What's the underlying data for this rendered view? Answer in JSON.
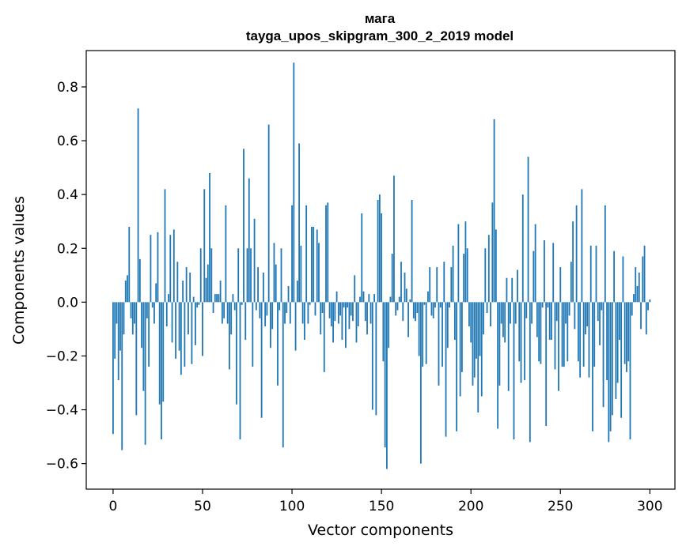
{
  "chart_data": {
    "type": "bar",
    "title": "мага",
    "subtitle": "tayga_upos_skipgram_300_2_2019 model",
    "xlabel": "Vector components",
    "ylabel": "Components values",
    "xlim": [
      -15,
      314
    ],
    "ylim": [
      -0.695,
      0.935
    ],
    "x_ticks": [
      0,
      50,
      100,
      150,
      200,
      250,
      300
    ],
    "y_ticks": [
      -0.6,
      -0.4,
      -0.2,
      0.0,
      0.2,
      0.4,
      0.6,
      0.8
    ],
    "x_tick_labels": [
      "0",
      "50",
      "100",
      "150",
      "200",
      "250",
      "300"
    ],
    "y_tick_labels": [
      "−0.6",
      "−0.4",
      "−0.2",
      "0.0",
      "0.2",
      "0.4",
      "0.6",
      "0.8"
    ],
    "bar_color": "#1f77b4",
    "grid": false,
    "legend": "none",
    "series": [
      {
        "values": [
          -0.49,
          -0.21,
          -0.08,
          -0.29,
          -0.18,
          -0.55,
          -0.12,
          0.08,
          0.1,
          0.28,
          -0.06,
          -0.12,
          -0.08,
          -0.42,
          0.72,
          0.16,
          -0.17,
          -0.33,
          -0.53,
          -0.06,
          -0.24,
          0.25,
          -0.02,
          -0.08,
          0.07,
          0.26,
          -0.38,
          -0.51,
          -0.37,
          0.42,
          -0.09,
          0.03,
          0.25,
          -0.15,
          0.27,
          -0.21,
          0.15,
          -0.18,
          -0.27,
          0.08,
          -0.24,
          0.13,
          -0.12,
          0.11,
          -0.23,
          0.02,
          -0.16,
          -0.02,
          -0.01,
          0.2,
          -0.2,
          0.42,
          0.09,
          0.14,
          0.48,
          0.2,
          -0.04,
          0.03,
          0.03,
          0.03,
          0.08,
          -0.08,
          -0.06,
          0.36,
          -0.08,
          -0.25,
          -0.12,
          0.03,
          -0.03,
          -0.38,
          0.2,
          -0.51,
          -0.01,
          0.57,
          -0.14,
          0.2,
          0.46,
          0.2,
          -0.24,
          0.31,
          -0.03,
          0.13,
          -0.06,
          -0.43,
          0.11,
          -0.09,
          -0.05,
          0.66,
          -0.17,
          -0.1,
          0.22,
          0.14,
          -0.31,
          -0.03,
          0.2,
          -0.54,
          -0.08,
          -0.04,
          0.06,
          -0.08,
          0.36,
          0.89,
          -0.18,
          0.08,
          0.59,
          0.21,
          -0.08,
          -0.14,
          0.36,
          -0.08,
          -0.01,
          0.28,
          0.28,
          -0.05,
          0.27,
          0.22,
          -0.12,
          -0.04,
          -0.26,
          0.36,
          0.37,
          -0.06,
          -0.09,
          -0.15,
          -0.07,
          0.04,
          -0.08,
          -0.05,
          -0.14,
          -0.02,
          -0.17,
          -0.02,
          -0.1,
          -0.05,
          -0.07,
          0.1,
          -0.15,
          -0.09,
          0.02,
          0.33,
          0.04,
          -0.07,
          -0.12,
          0.03,
          -0.08,
          -0.4,
          0.03,
          -0.42,
          0.38,
          0.4,
          0.33,
          -0.22,
          -0.54,
          -0.62,
          -0.17,
          0.02,
          0.18,
          0.47,
          -0.05,
          -0.03,
          0.02,
          0.15,
          -0.07,
          0.11,
          0.05,
          -0.13,
          0.01,
          0.38,
          -0.06,
          -0.07,
          -0.04,
          -0.2,
          -0.6,
          -0.24,
          -0.01,
          -0.23,
          0.04,
          0.13,
          -0.05,
          -0.06,
          -0.02,
          0.13,
          -0.31,
          -0.02,
          -0.24,
          0.15,
          -0.5,
          -0.17,
          -0.02,
          0.13,
          0.21,
          -0.14,
          -0.48,
          0.29,
          -0.35,
          -0.26,
          0.18,
          0.3,
          0.2,
          -0.09,
          -0.15,
          -0.31,
          -0.28,
          -0.21,
          -0.41,
          -0.2,
          -0.35,
          -0.12,
          0.2,
          -0.04,
          0.25,
          -0.09,
          0.37,
          0.68,
          0.27,
          -0.47,
          -0.31,
          -0.08,
          -0.13,
          -0.15,
          0.09,
          -0.33,
          -0.08,
          0.09,
          -0.51,
          -0.08,
          0.12,
          -0.22,
          -0.3,
          0.4,
          -0.29,
          -0.06,
          0.54,
          -0.52,
          -0.08,
          0.19,
          0.29,
          -0.13,
          -0.22,
          -0.23,
          -0.02,
          0.23,
          -0.46,
          -0.02,
          -0.14,
          -0.14,
          0.22,
          -0.25,
          -0.07,
          -0.33,
          0.13,
          -0.24,
          -0.24,
          -0.08,
          -0.22,
          -0.05,
          0.15,
          0.3,
          -0.1,
          0.36,
          -0.22,
          -0.28,
          0.42,
          -0.24,
          -0.12,
          -0.09,
          -0.28,
          0.21,
          -0.48,
          -0.24,
          0.21,
          -0.07,
          -0.16,
          -0.03,
          -0.39,
          0.36,
          -0.29,
          -0.52,
          -0.48,
          -0.42,
          0.19,
          -0.36,
          -0.3,
          -0.14,
          -0.43,
          0.17,
          -0.23,
          -0.26,
          -0.22,
          -0.51,
          -0.05,
          0.03,
          0.13,
          0.06,
          0.11,
          -0.1,
          0.17,
          0.21,
          -0.12,
          -0.03,
          0.01
        ]
      }
    ]
  }
}
